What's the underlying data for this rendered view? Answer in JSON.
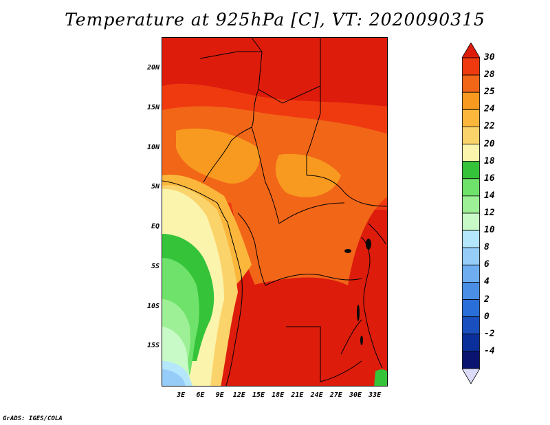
{
  "title": "Temperature at 925hPa [C], VT: 2020090315",
  "credit": "GrADS: IGES/COLA",
  "map": {
    "lon_range": [
      0,
      35
    ],
    "lat_range": [
      -20,
      24
    ],
    "lat_ticks": [
      {
        "value": 20,
        "label": "20N"
      },
      {
        "value": 15,
        "label": "15N"
      },
      {
        "value": 10,
        "label": "10N"
      },
      {
        "value": 5,
        "label": "5N"
      },
      {
        "value": 0,
        "label": "EQ"
      },
      {
        "value": -5,
        "label": "5S"
      },
      {
        "value": -10,
        "label": "10S"
      },
      {
        "value": -15,
        "label": "15S"
      }
    ],
    "lon_ticks": [
      {
        "value": 3,
        "label": "3E"
      },
      {
        "value": 6,
        "label": "6E"
      },
      {
        "value": 9,
        "label": "9E"
      },
      {
        "value": 12,
        "label": "12E"
      },
      {
        "value": 15,
        "label": "15E"
      },
      {
        "value": 18,
        "label": "18E"
      },
      {
        "value": 21,
        "label": "21E"
      },
      {
        "value": 24,
        "label": "24E"
      },
      {
        "value": 27,
        "label": "27E"
      },
      {
        "value": 30,
        "label": "30E"
      },
      {
        "value": 33,
        "label": "33E"
      }
    ]
  },
  "colorbar": {
    "levels": [
      "30",
      "28",
      "25",
      "24",
      "22",
      "20",
      "18",
      "16",
      "14",
      "12",
      "10",
      "8",
      "6",
      "4",
      "2",
      "0",
      "-2",
      "-4"
    ],
    "colors": [
      "#dd1c0c",
      "#ef3a10",
      "#f26618",
      "#f79a1f",
      "#fbb73c",
      "#fbd36b",
      "#fbf4ad",
      "#35c33a",
      "#6ee26a",
      "#9df096",
      "#c8fac8",
      "#b4e6fc",
      "#96cdf8",
      "#6eaef0",
      "#4a8ee6",
      "#2a6ed9",
      "#1a4fc0",
      "#0b2f9a",
      "#0a1470",
      "#dcdcf8"
    ]
  }
}
